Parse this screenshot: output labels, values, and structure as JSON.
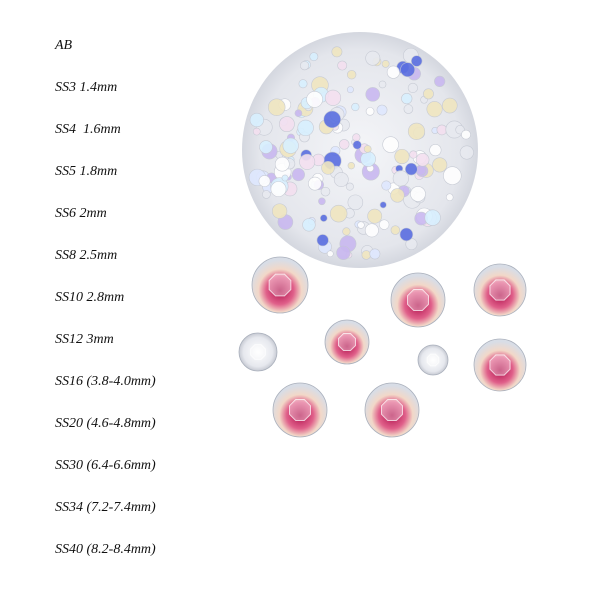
{
  "product": {
    "color_label": "AB",
    "sizes": [
      "SS3 1.4mm",
      "SS4  1.6mm",
      "SS5 1.8mm",
      "SS6 2mm",
      "SS8 2.5mm",
      "SS10 2.8mm",
      "SS12 3mm",
      "SS16 (3.8-4.0mm)",
      "SS20 (4.6-4.8mm)",
      "SS30 (6.4-6.6mm)",
      "SS34 (7.2-7.4mm)",
      "SS40 (8.2-8.4mm)"
    ],
    "images": {
      "closeup": "rhinestone-pile-closeup",
      "loose": "loose-ab-rhinestones"
    },
    "colors": {
      "pink": "#c8306a",
      "blue": "#5a6ee0",
      "clear": "#eef0f4"
    }
  }
}
